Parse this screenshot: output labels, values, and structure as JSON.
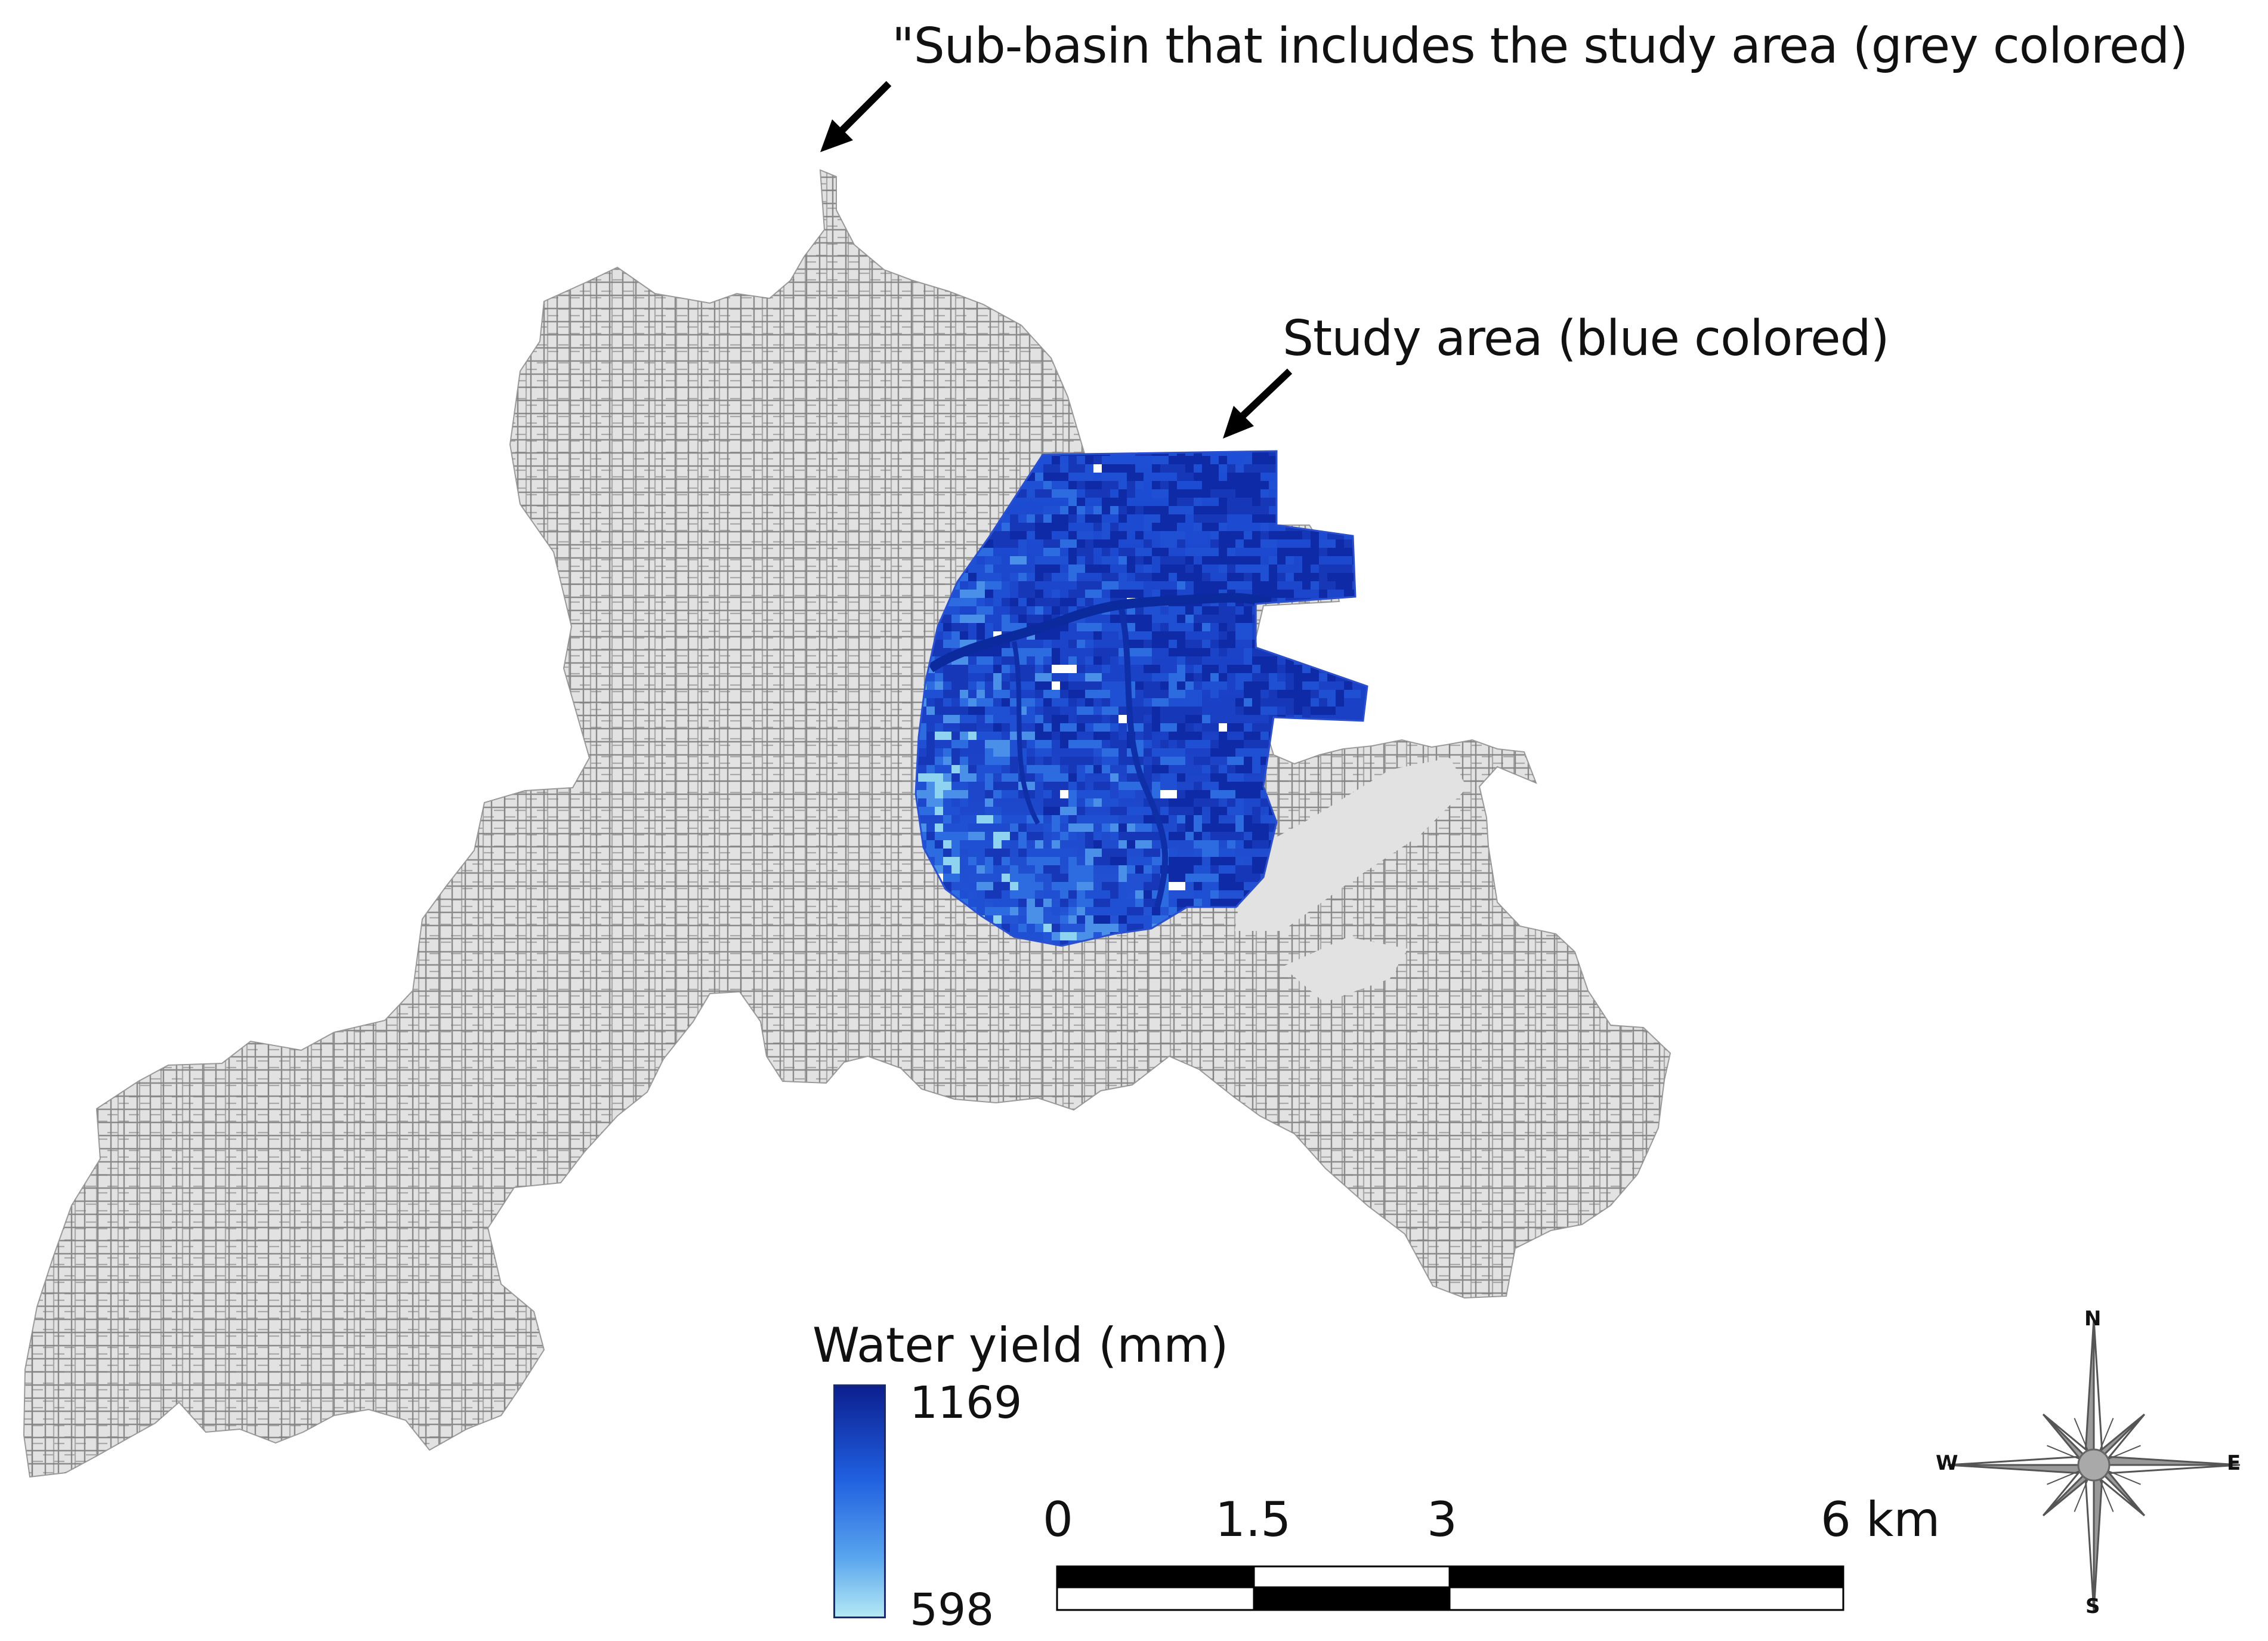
{
  "annotations": {
    "subbasin": "\"Sub-basin that includes the study area (grey colored)",
    "study_area": "Study area (blue colored)"
  },
  "legend": {
    "title": "Water yield (mm)",
    "max": "1169",
    "min": "598",
    "ramp_colors": [
      "#0c1f8f",
      "#1f5fe0",
      "#5aa6ee",
      "#b4e8f4"
    ]
  },
  "scale_bar": {
    "labels": [
      "0",
      "1.5",
      "3",
      "6"
    ],
    "unit": "km"
  },
  "north_arrow": {
    "N": "N",
    "E": "E",
    "S": "S",
    "W": "W"
  },
  "colors": {
    "subbasin_fill": "#e2e2e2",
    "stream_lines": "#8a8a8a",
    "study_dark": "#1634b8",
    "study_mid": "#2b6fe0",
    "study_light": "#8ed3ef",
    "arrow": "#000000"
  }
}
